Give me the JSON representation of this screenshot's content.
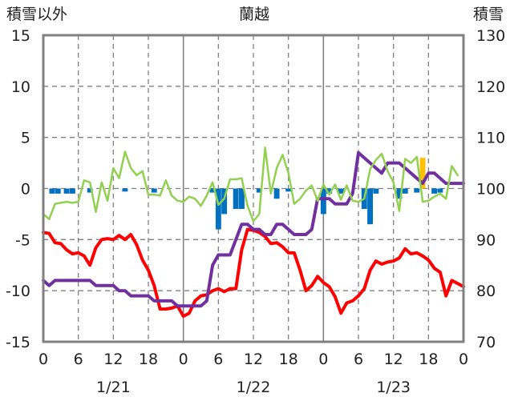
{
  "chart_data": {
    "type": "line",
    "title": "蘭越",
    "left_axis_label": "積雪以外",
    "right_axis_label": "積雪",
    "left_ylim": [
      -15,
      15
    ],
    "left_yticks": [
      15,
      10,
      5,
      0,
      -5,
      -10,
      -15
    ],
    "right_ylim": [
      70,
      130
    ],
    "right_yticks": [
      130,
      120,
      110,
      100,
      90,
      80,
      70
    ],
    "xlim": [
      0,
      72
    ],
    "x_tick_labels": [
      "0",
      "6",
      "12",
      "18",
      "0",
      "6",
      "12",
      "18",
      "0",
      "6",
      "12",
      "18",
      "0"
    ],
    "date_labels": [
      "1/21",
      "1/22",
      "1/23"
    ],
    "grid": true,
    "colors": {
      "precip": "#0070c0",
      "snowfall": "#ffc000",
      "temperature": "#ff0000",
      "snow_depth": "#7030a0",
      "wind": "#92d050",
      "frame": "#808080"
    },
    "series": [
      {
        "color": "#ff0000",
        "axis": "left",
        "values": [
          [
            0,
            -4.3
          ],
          [
            1,
            -4.4
          ],
          [
            2,
            -5.3
          ],
          [
            3,
            -5.4
          ],
          [
            4,
            -6
          ],
          [
            5,
            -6.4
          ],
          [
            6,
            -6.3
          ],
          [
            7,
            -6.6
          ],
          [
            8,
            -7.5
          ],
          [
            9,
            -5.8
          ],
          [
            10,
            -5
          ],
          [
            11,
            -4.9
          ],
          [
            12,
            -5
          ],
          [
            13,
            -4.6
          ],
          [
            14,
            -5
          ],
          [
            15,
            -4.5
          ],
          [
            16,
            -5.5
          ],
          [
            17,
            -7
          ],
          [
            18,
            -8
          ],
          [
            19,
            -9.5
          ],
          [
            20,
            -11.8
          ],
          [
            21,
            -11.8
          ],
          [
            22,
            -11.7
          ],
          [
            23,
            -11.5
          ],
          [
            24,
            -12.5
          ],
          [
            25,
            -12.2
          ],
          [
            26,
            -11
          ],
          [
            27,
            -10.5
          ],
          [
            28,
            -10.4
          ],
          [
            29,
            -10
          ],
          [
            30,
            -9.8
          ],
          [
            31,
            -10.1
          ],
          [
            32,
            -9.8
          ],
          [
            33,
            -9.8
          ],
          [
            34,
            -6
          ],
          [
            35,
            -4
          ],
          [
            36,
            -4.1
          ],
          [
            37,
            -4.3
          ],
          [
            38,
            -4.7
          ],
          [
            39,
            -5.4
          ],
          [
            40,
            -5.3
          ],
          [
            41,
            -5.7
          ],
          [
            42,
            -6.3
          ],
          [
            43,
            -6.3
          ],
          [
            44,
            -8
          ],
          [
            45,
            -10
          ],
          [
            46,
            -9.5
          ],
          [
            47,
            -8.6
          ],
          [
            48,
            -9.2
          ],
          [
            49,
            -9.6
          ],
          [
            50,
            -10.6
          ],
          [
            51,
            -12.2
          ],
          [
            52,
            -11.2
          ],
          [
            53,
            -11
          ],
          [
            54,
            -10.5
          ],
          [
            55,
            -9.8
          ],
          [
            56,
            -8
          ],
          [
            57,
            -7.1
          ],
          [
            58,
            -7.4
          ],
          [
            59,
            -7.2
          ],
          [
            60,
            -7.1
          ],
          [
            61,
            -6.8
          ],
          [
            62,
            -5.9
          ],
          [
            63,
            -6.4
          ],
          [
            64,
            -6.3
          ],
          [
            65,
            -6.6
          ],
          [
            66,
            -7
          ],
          [
            67,
            -7.8
          ],
          [
            68,
            -8.2
          ],
          [
            69,
            -10.5
          ],
          [
            70,
            -9
          ],
          [
            71,
            -9.3
          ],
          [
            72,
            -9.6
          ]
        ]
      },
      {
        "color": "#7030a0",
        "axis": "right",
        "values": [
          [
            0,
            82
          ],
          [
            1,
            81
          ],
          [
            2,
            82
          ],
          [
            3,
            82
          ],
          [
            4,
            82
          ],
          [
            5,
            82
          ],
          [
            6,
            82
          ],
          [
            7,
            82
          ],
          [
            8,
            82
          ],
          [
            9,
            81
          ],
          [
            10,
            81
          ],
          [
            11,
            81
          ],
          [
            12,
            81
          ],
          [
            13,
            80
          ],
          [
            14,
            80
          ],
          [
            15,
            79
          ],
          [
            16,
            79
          ],
          [
            17,
            79
          ],
          [
            18,
            79
          ],
          [
            19,
            78
          ],
          [
            20,
            78
          ],
          [
            21,
            78
          ],
          [
            22,
            78
          ],
          [
            23,
            77
          ],
          [
            24,
            77
          ],
          [
            25,
            77
          ],
          [
            26,
            77
          ],
          [
            27,
            77
          ],
          [
            28,
            78
          ],
          [
            29,
            85
          ],
          [
            30,
            87
          ],
          [
            31,
            87
          ],
          [
            32,
            87
          ],
          [
            33,
            90
          ],
          [
            34,
            93
          ],
          [
            35,
            93
          ],
          [
            36,
            92
          ],
          [
            37,
            92
          ],
          [
            38,
            91
          ],
          [
            39,
            91
          ],
          [
            40,
            93
          ],
          [
            41,
            93
          ],
          [
            42,
            92
          ],
          [
            43,
            91
          ],
          [
            44,
            91
          ],
          [
            45,
            91
          ],
          [
            46,
            92
          ],
          [
            47,
            98
          ],
          [
            48,
            98
          ],
          [
            49,
            98
          ],
          [
            50,
            97
          ],
          [
            51,
            97
          ],
          [
            52,
            97
          ],
          [
            53,
            99
          ],
          [
            54,
            107
          ],
          [
            55,
            106
          ],
          [
            56,
            105
          ],
          [
            57,
            104
          ],
          [
            58,
            103
          ],
          [
            59,
            105
          ],
          [
            60,
            105
          ],
          [
            61,
            105
          ],
          [
            62,
            104
          ],
          [
            63,
            103
          ],
          [
            64,
            102
          ],
          [
            65,
            101
          ],
          [
            66,
            103
          ],
          [
            67,
            103
          ],
          [
            68,
            102
          ],
          [
            69,
            101
          ],
          [
            70,
            101
          ],
          [
            71,
            101
          ],
          [
            72,
            101
          ]
        ]
      },
      {
        "color": "#92d050",
        "axis": "left",
        "values": [
          [
            0,
            -2.5
          ],
          [
            1,
            -3
          ],
          [
            2,
            -1.5
          ],
          [
            3,
            -1.4
          ],
          [
            4,
            -1.3
          ],
          [
            5,
            -1.4
          ],
          [
            6,
            -1.3
          ],
          [
            7,
            0.8
          ],
          [
            8,
            0.6
          ],
          [
            9,
            -2.3
          ],
          [
            10,
            0.6
          ],
          [
            11,
            -1.2
          ],
          [
            12,
            2
          ],
          [
            13,
            1
          ],
          [
            14,
            3.6
          ],
          [
            15,
            2
          ],
          [
            16,
            1.3
          ],
          [
            17,
            1.7
          ],
          [
            18,
            -0.6
          ],
          [
            19,
            -0.6
          ],
          [
            20,
            -0.7
          ],
          [
            21,
            0.8
          ],
          [
            22,
            -0.7
          ],
          [
            23,
            -1.2
          ],
          [
            24,
            -1.3
          ],
          [
            25,
            -0.8
          ],
          [
            26,
            -1
          ],
          [
            27,
            -1.7
          ],
          [
            28,
            -0.7
          ],
          [
            29,
            0.6
          ],
          [
            30,
            -1.6
          ],
          [
            31,
            -1
          ],
          [
            32,
            0.9
          ],
          [
            33,
            0.9
          ],
          [
            34,
            1
          ],
          [
            35,
            -1.7
          ],
          [
            36,
            -3.2
          ],
          [
            37,
            -2.5
          ],
          [
            38,
            4
          ],
          [
            39,
            -0.5
          ],
          [
            40,
            2
          ],
          [
            41,
            3.3
          ],
          [
            42,
            1.5
          ],
          [
            43,
            -1.5
          ],
          [
            44,
            -1
          ],
          [
            45,
            -0.2
          ],
          [
            46,
            0.3
          ],
          [
            47,
            -1.2
          ],
          [
            48,
            0.4
          ],
          [
            49,
            -0.6
          ],
          [
            50,
            0.4
          ],
          [
            51,
            -1.1
          ],
          [
            52,
            0.3
          ],
          [
            53,
            -1.2
          ],
          [
            54,
            -1.3
          ],
          [
            55,
            -1
          ],
          [
            56,
            1.9
          ],
          [
            57,
            2.8
          ],
          [
            58,
            3.4
          ],
          [
            59,
            1.7
          ],
          [
            60,
            0.6
          ],
          [
            61,
            -2.2
          ],
          [
            62,
            2.9
          ],
          [
            63,
            2.5
          ],
          [
            64,
            3.1
          ],
          [
            65,
            -1.3
          ],
          [
            66,
            -1.2
          ],
          [
            67,
            -0.8
          ],
          [
            68,
            -0.5
          ],
          [
            69,
            -1
          ],
          [
            70,
            2.2
          ],
          [
            71,
            1.3
          ]
        ]
      }
    ],
    "bars": [
      {
        "color": "#0070c0",
        "axis": "left",
        "values": [
          [
            1.5,
            -0.5
          ],
          [
            2.5,
            -0.5
          ],
          [
            4,
            -0.5
          ],
          [
            5,
            -0.5
          ],
          [
            8,
            -0.4
          ],
          [
            14,
            -0.3
          ],
          [
            19,
            -0.4
          ],
          [
            29,
            -0.4
          ],
          [
            30,
            -4
          ],
          [
            31,
            -2.5
          ],
          [
            33,
            -2
          ],
          [
            34,
            -2
          ],
          [
            37,
            -0.4
          ],
          [
            40,
            -1
          ],
          [
            42,
            -0.3
          ],
          [
            48,
            -2.5
          ],
          [
            49,
            -0.5
          ],
          [
            51,
            -0.5
          ],
          [
            55,
            -2
          ],
          [
            56,
            -3.5
          ],
          [
            57,
            -0.5
          ],
          [
            61,
            -1
          ],
          [
            62,
            -0.5
          ],
          [
            64,
            -0.4
          ],
          [
            67,
            -0.5
          ],
          [
            68,
            -0.4
          ]
        ]
      },
      {
        "color": "#ffc000",
        "axis": "left",
        "values": [
          [
            65,
            3
          ]
        ]
      }
    ]
  }
}
